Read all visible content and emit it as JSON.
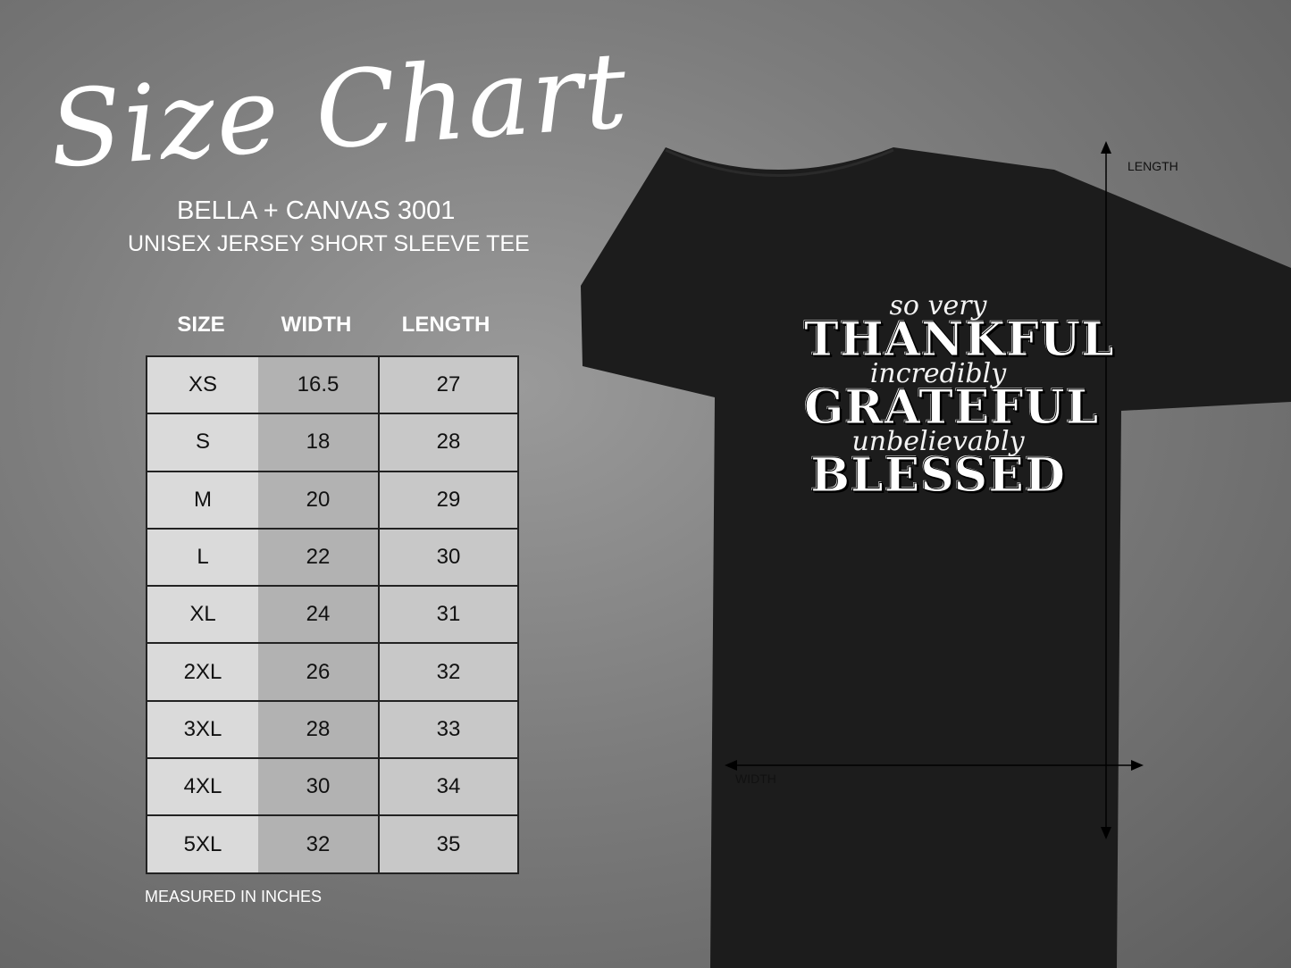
{
  "header": {
    "title": "Size Chart",
    "brand": "BELLA + CANVAS 3001",
    "subtitle": "UNISEX JERSEY SHORT SLEEVE TEE"
  },
  "table": {
    "columns": [
      "SIZE",
      "WIDTH",
      "LENGTH"
    ],
    "rows": [
      [
        "XS",
        "16.5",
        "27"
      ],
      [
        "S",
        "18",
        "28"
      ],
      [
        "M",
        "20",
        "29"
      ],
      [
        "L",
        "22",
        "30"
      ],
      [
        "XL",
        "24",
        "31"
      ],
      [
        "2XL",
        "26",
        "32"
      ],
      [
        "3XL",
        "28",
        "33"
      ],
      [
        "4XL",
        "30",
        "34"
      ],
      [
        "5XL",
        "32",
        "35"
      ]
    ],
    "note": "MEASURED IN INCHES"
  },
  "shirt": {
    "color": "#1c1c1c",
    "design_lines": [
      "so very",
      "THANKFUL",
      "incredibly",
      "GRATEFUL",
      "unbelievably",
      "BLESSED"
    ],
    "length_label": "LENGTH",
    "width_label": "WIDTH"
  }
}
